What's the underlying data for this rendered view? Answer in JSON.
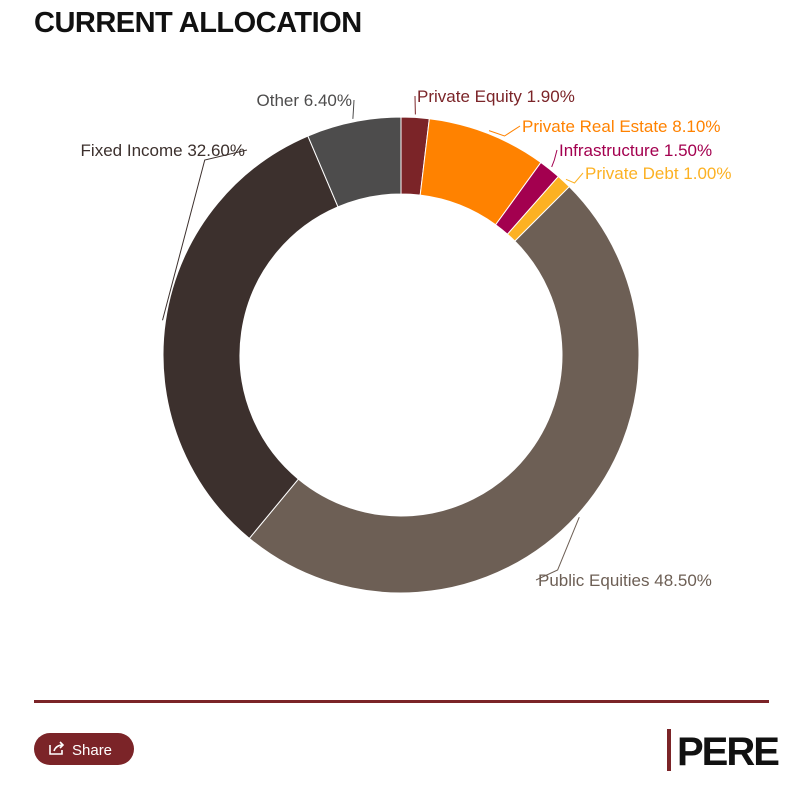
{
  "header": {
    "title": "CURRENT ALLOCATION"
  },
  "chart_data": {
    "type": "donut",
    "categories": [
      "Private Equity",
      "Private Real Estate",
      "Infrastructure",
      "Private Debt",
      "Public Equities",
      "Fixed Income",
      "Other"
    ],
    "values": [
      1.9,
      8.1,
      1.5,
      1.0,
      48.5,
      32.6,
      6.4
    ],
    "value_labels": [
      "1.90%",
      "8.10%",
      "1.50%",
      "1.00%",
      "48.50%",
      "32.60%",
      "6.40%"
    ],
    "colors": [
      "#7b2428",
      "#ff8200",
      "#a3004f",
      "#fcb123",
      "#6d5f55",
      "#3c302d",
      "#4d4c4c"
    ]
  },
  "footer": {
    "share": "Share",
    "brand": "PERE"
  }
}
